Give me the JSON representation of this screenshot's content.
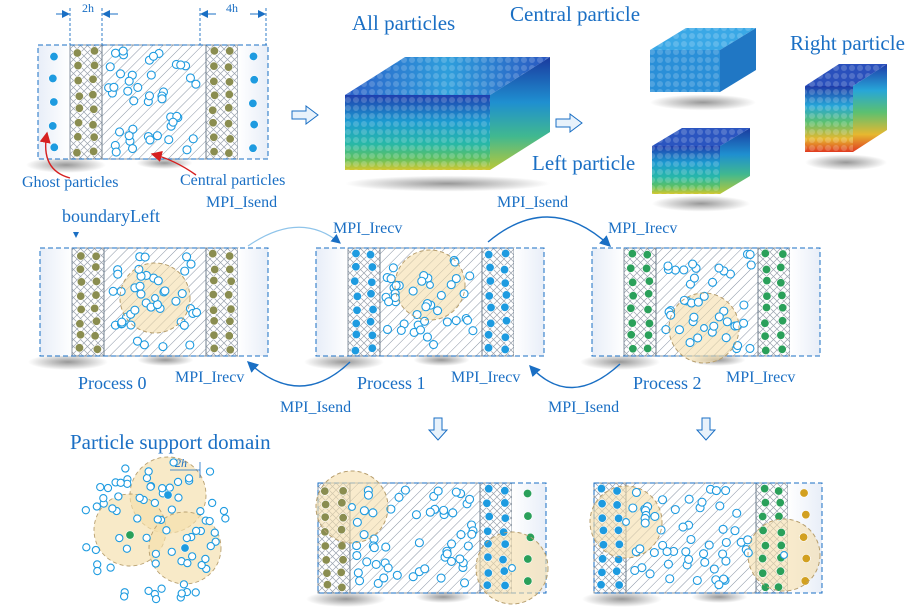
{
  "labels": {
    "dim_2h": "2h",
    "dim_4h": "4h",
    "all_particles": "All particles",
    "central_particle": "Central particle",
    "right_particle": "Right particle",
    "left_particle": "Left particle",
    "ghost_particles": "Ghost particles",
    "central_particles": "Central particles",
    "boundary_left": "boundaryLeft",
    "process_0": "Process 0",
    "process_1": "Process 1",
    "process_2": "Process 2",
    "particle_support_domain": "Particle support domain",
    "support_2h": "2h"
  },
  "mpi": {
    "isend": "MPI_Isend",
    "irecv": "MPI_Irecv"
  },
  "colors": {
    "accent": "#1a6fc4",
    "particle_blue": "#1e9be0",
    "particle_green": "#2aa05a",
    "particle_olive": "#8a8d50",
    "particle_gold": "#d2a020",
    "support_fill": "#f5deaa",
    "red_arrow": "#d62020"
  }
}
